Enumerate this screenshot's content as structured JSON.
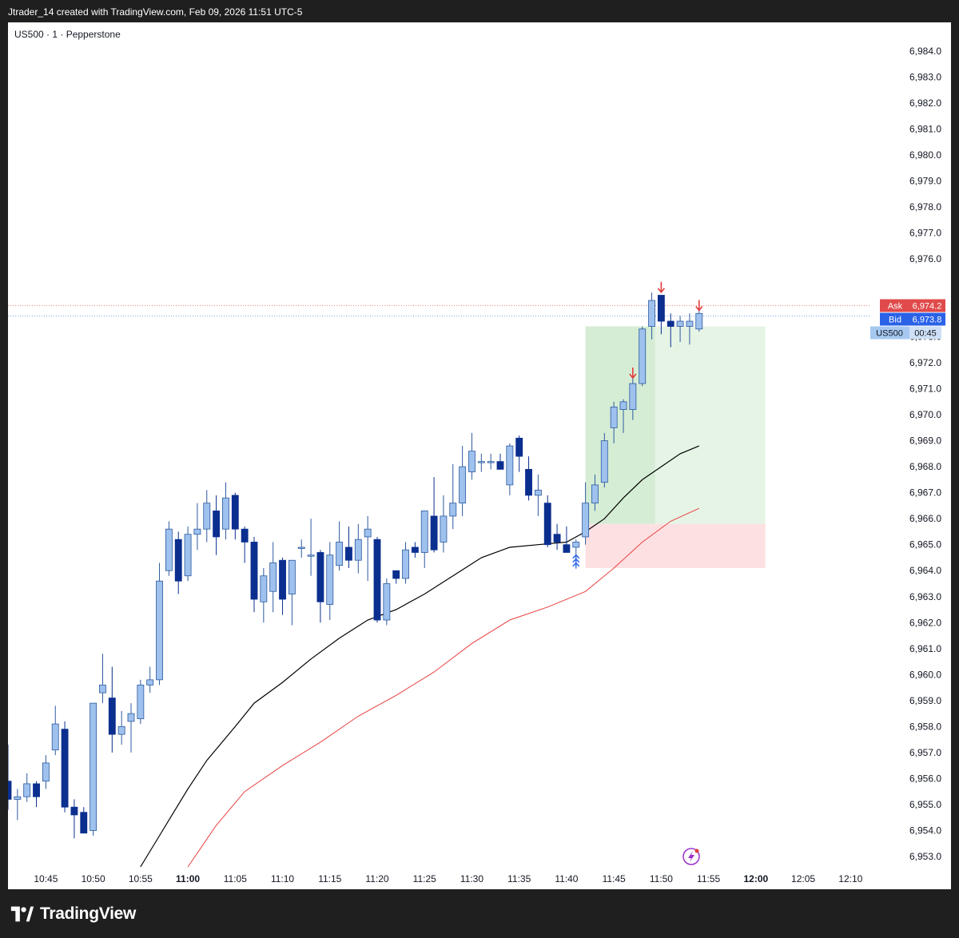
{
  "header": {
    "title": "Jtrader_14 created with TradingView.com, Feb 09, 2026 11:51 UTC-5"
  },
  "legend": {
    "symbol_line": "US500 · 1 · Pepperstone"
  },
  "footer": {
    "brand": "TradingView",
    "logo_icon": "tradingview-logo-icon"
  },
  "colors": {
    "bull_fill": "#9ec1ee",
    "bull_border": "#2d5a9e",
    "bear_fill": "#0b2f8f",
    "ema_fast": "#000000",
    "ema_slow": "#e8403f",
    "target_zone": "#e6f4e6",
    "target_zone_dark": "#c9e8c9",
    "stop_zone": "#fde0e2",
    "ask_label": "#e04a4a",
    "bid_label": "#2a62e8",
    "symbol_label": "#a6c8f0",
    "arrow_marker": "#e03c3c"
  },
  "chart_data": {
    "type": "candlestick",
    "symbol": "US500",
    "interval": "1",
    "broker": "Pepperstone",
    "y_range": [
      6952.6,
      6985.1
    ],
    "x_range": [
      "10:41",
      "12:12"
    ],
    "x_ticks": [
      "10:45",
      "10:50",
      "10:55",
      "11:00",
      "11:05",
      "11:10",
      "11:15",
      "11:20",
      "11:25",
      "11:30",
      "11:35",
      "11:40",
      "11:45",
      "11:50",
      "11:55",
      "12:00",
      "12:05",
      "12:10"
    ],
    "x_ticks_bold": [
      "11:00",
      "12:00"
    ],
    "y_ticks": [
      "6,984.0",
      "6,983.0",
      "6,982.0",
      "6,981.0",
      "6,980.0",
      "6,979.0",
      "6,978.0",
      "6,977.0",
      "6,976.0",
      "6,973.0",
      "6,972.0",
      "6,971.0",
      "6,970.0",
      "6,969.0",
      "6,968.0",
      "6,967.0",
      "6,966.0",
      "6,965.0",
      "6,964.0",
      "6,963.0",
      "6,962.0",
      "6,961.0",
      "6,960.0",
      "6,959.0",
      "6,958.0",
      "6,957.0",
      "6,956.0",
      "6,955.0",
      "6,954.0",
      "6,953.0"
    ],
    "candles": [
      {
        "t": "10:41",
        "o": 6955.9,
        "h": 6957.3,
        "l": 6954.8,
        "c": 6955.2
      },
      {
        "t": "10:42",
        "o": 6955.2,
        "h": 6955.6,
        "l": 6954.4,
        "c": 6955.3
      },
      {
        "t": "10:43",
        "o": 6955.3,
        "h": 6956.2,
        "l": 6955.1,
        "c": 6955.8
      },
      {
        "t": "10:44",
        "o": 6955.8,
        "h": 6955.9,
        "l": 6954.9,
        "c": 6955.3
      },
      {
        "t": "10:45",
        "o": 6955.9,
        "h": 6956.9,
        "l": 6955.6,
        "c": 6956.6
      },
      {
        "t": "10:46",
        "o": 6957.1,
        "h": 6958.8,
        "l": 6956.9,
        "c": 6958.1
      },
      {
        "t": "10:47",
        "o": 6957.9,
        "h": 6958.2,
        "l": 6954.7,
        "c": 6954.9
      },
      {
        "t": "10:48",
        "o": 6954.9,
        "h": 6955.2,
        "l": 6953.7,
        "c": 6954.6
      },
      {
        "t": "10:49",
        "o": 6954.7,
        "h": 6954.9,
        "l": 6953.9,
        "c": 6953.9
      },
      {
        "t": "10:50",
        "o": 6954.0,
        "h": 6958.9,
        "l": 6953.8,
        "c": 6958.9
      },
      {
        "t": "10:51",
        "o": 6959.3,
        "h": 6960.8,
        "l": 6958.9,
        "c": 6959.6
      },
      {
        "t": "10:52",
        "o": 6959.1,
        "h": 6960.3,
        "l": 6957.0,
        "c": 6957.7
      },
      {
        "t": "10:53",
        "o": 6957.7,
        "h": 6958.6,
        "l": 6957.3,
        "c": 6958.0
      },
      {
        "t": "10:54",
        "o": 6958.2,
        "h": 6958.9,
        "l": 6957.0,
        "c": 6958.5
      },
      {
        "t": "10:55",
        "o": 6958.3,
        "h": 6959.8,
        "l": 6958.1,
        "c": 6959.6
      },
      {
        "t": "10:56",
        "o": 6959.6,
        "h": 6960.3,
        "l": 6959.3,
        "c": 6959.8
      },
      {
        "t": "10:57",
        "o": 6959.8,
        "h": 6964.3,
        "l": 6959.6,
        "c": 6963.6
      },
      {
        "t": "10:58",
        "o": 6964.0,
        "h": 6965.9,
        "l": 6963.8,
        "c": 6965.6
      },
      {
        "t": "10:59",
        "o": 6965.2,
        "h": 6965.5,
        "l": 6963.1,
        "c": 6963.6
      },
      {
        "t": "11:00",
        "o": 6963.8,
        "h": 6965.7,
        "l": 6963.6,
        "c": 6965.4
      },
      {
        "t": "11:01",
        "o": 6965.4,
        "h": 6966.6,
        "l": 6964.8,
        "c": 6965.6
      },
      {
        "t": "11:02",
        "o": 6965.6,
        "h": 6967.1,
        "l": 6965.1,
        "c": 6966.6
      },
      {
        "t": "11:03",
        "o": 6966.3,
        "h": 6966.9,
        "l": 6964.6,
        "c": 6965.3
      },
      {
        "t": "11:04",
        "o": 6965.6,
        "h": 6967.4,
        "l": 6965.2,
        "c": 6966.8
      },
      {
        "t": "11:05",
        "o": 6966.9,
        "h": 6967.0,
        "l": 6965.2,
        "c": 6965.6
      },
      {
        "t": "11:06",
        "o": 6965.6,
        "h": 6965.7,
        "l": 6964.3,
        "c": 6965.1
      },
      {
        "t": "11:07",
        "o": 6965.1,
        "h": 6965.3,
        "l": 6962.4,
        "c": 6962.9
      },
      {
        "t": "11:08",
        "o": 6962.8,
        "h": 6964.1,
        "l": 6962.0,
        "c": 6963.8
      },
      {
        "t": "11:09",
        "o": 6963.2,
        "h": 6965.1,
        "l": 6962.4,
        "c": 6964.3
      },
      {
        "t": "11:10",
        "o": 6964.4,
        "h": 6964.5,
        "l": 6962.3,
        "c": 6962.9
      },
      {
        "t": "11:11",
        "o": 6963.1,
        "h": 6964.4,
        "l": 6961.9,
        "c": 6964.4
      },
      {
        "t": "11:12",
        "o": 6964.9,
        "h": 6965.2,
        "l": 6964.5,
        "c": 6964.9
      },
      {
        "t": "11:13",
        "o": 6964.6,
        "h": 6966.0,
        "l": 6963.8,
        "c": 6964.6
      },
      {
        "t": "11:14",
        "o": 6964.7,
        "h": 6964.8,
        "l": 6962.0,
        "c": 6962.8
      },
      {
        "t": "11:15",
        "o": 6962.7,
        "h": 6965.1,
        "l": 6962.1,
        "c": 6964.6
      },
      {
        "t": "11:16",
        "o": 6964.2,
        "h": 6965.9,
        "l": 6964.0,
        "c": 6965.1
      },
      {
        "t": "11:17",
        "o": 6964.9,
        "h": 6965.7,
        "l": 6964.1,
        "c": 6964.4
      },
      {
        "t": "11:18",
        "o": 6964.4,
        "h": 6965.8,
        "l": 6963.9,
        "c": 6965.2
      },
      {
        "t": "11:19",
        "o": 6965.3,
        "h": 6966.1,
        "l": 6963.6,
        "c": 6965.6
      },
      {
        "t": "11:20",
        "o": 6965.2,
        "h": 6965.3,
        "l": 6962.0,
        "c": 6962.1
      },
      {
        "t": "11:21",
        "o": 6962.1,
        "h": 6963.7,
        "l": 6961.9,
        "c": 6963.5
      },
      {
        "t": "11:22",
        "o": 6964.0,
        "h": 6964.0,
        "l": 6963.5,
        "c": 6963.7
      },
      {
        "t": "11:23",
        "o": 6963.7,
        "h": 6965.1,
        "l": 6963.5,
        "c": 6964.8
      },
      {
        "t": "11:24",
        "o": 6964.9,
        "h": 6965.1,
        "l": 6964.5,
        "c": 6964.7
      },
      {
        "t": "11:25",
        "o": 6964.7,
        "h": 6966.3,
        "l": 6964.1,
        "c": 6966.3
      },
      {
        "t": "11:26",
        "o": 6966.1,
        "h": 6967.6,
        "l": 6964.7,
        "c": 6964.8
      },
      {
        "t": "11:27",
        "o": 6965.1,
        "h": 6966.9,
        "l": 6964.7,
        "c": 6966.1
      },
      {
        "t": "11:28",
        "o": 6966.1,
        "h": 6968.1,
        "l": 6965.6,
        "c": 6966.6
      },
      {
        "t": "11:29",
        "o": 6966.6,
        "h": 6968.8,
        "l": 6966.1,
        "c": 6968.0
      },
      {
        "t": "11:30",
        "o": 6967.8,
        "h": 6969.3,
        "l": 6967.5,
        "c": 6968.6
      },
      {
        "t": "11:31",
        "o": 6968.2,
        "h": 6968.5,
        "l": 6967.8,
        "c": 6968.2
      },
      {
        "t": "11:32",
        "o": 6968.2,
        "h": 6968.5,
        "l": 6967.9,
        "c": 6968.2
      },
      {
        "t": "11:33",
        "o": 6968.2,
        "h": 6968.5,
        "l": 6967.9,
        "c": 6967.9
      },
      {
        "t": "11:34",
        "o": 6967.3,
        "h": 6968.9,
        "l": 6966.9,
        "c": 6968.8
      },
      {
        "t": "11:35",
        "o": 6969.1,
        "h": 6969.2,
        "l": 6967.8,
        "c": 6968.4
      },
      {
        "t": "11:36",
        "o": 6967.9,
        "h": 6968.4,
        "l": 6966.7,
        "c": 6966.9
      },
      {
        "t": "11:37",
        "o": 6966.9,
        "h": 6967.7,
        "l": 6966.1,
        "c": 6967.1
      },
      {
        "t": "11:38",
        "o": 6966.6,
        "h": 6966.9,
        "l": 6964.9,
        "c": 6965.0
      },
      {
        "t": "11:39",
        "o": 6965.4,
        "h": 6965.8,
        "l": 6964.8,
        "c": 6965.1
      },
      {
        "t": "11:40",
        "o": 6965.0,
        "h": 6965.7,
        "l": 6964.8,
        "c": 6964.7
      },
      {
        "t": "11:41",
        "o": 6964.9,
        "h": 6965.2,
        "l": 6964.1,
        "c": 6965.1
      },
      {
        "t": "11:42",
        "o": 6965.3,
        "h": 6967.4,
        "l": 6965.0,
        "c": 6966.6
      },
      {
        "t": "11:43",
        "o": 6966.6,
        "h": 6967.7,
        "l": 6966.3,
        "c": 6967.3
      },
      {
        "t": "11:44",
        "o": 6967.4,
        "h": 6969.3,
        "l": 6967.2,
        "c": 6969.0
      },
      {
        "t": "11:45",
        "o": 6969.5,
        "h": 6970.5,
        "l": 6968.9,
        "c": 6970.3
      },
      {
        "t": "11:46",
        "o": 6970.2,
        "h": 6970.6,
        "l": 6969.3,
        "c": 6970.5
      },
      {
        "t": "11:47",
        "o": 6970.2,
        "h": 6971.4,
        "l": 6969.8,
        "c": 6971.2
      },
      {
        "t": "11:48",
        "o": 6971.2,
        "h": 6973.4,
        "l": 6971.1,
        "c": 6973.3
      },
      {
        "t": "11:49",
        "o": 6973.4,
        "h": 6974.7,
        "l": 6972.9,
        "c": 6974.4
      },
      {
        "t": "11:50",
        "o": 6974.6,
        "h": 6974.3,
        "l": 6973.1,
        "c": 6973.6
      },
      {
        "t": "11:51",
        "o": 6973.6,
        "h": 6973.9,
        "l": 6972.6,
        "c": 6973.4
      },
      {
        "t": "11:52",
        "o": 6973.4,
        "h": 6973.8,
        "l": 6972.8,
        "c": 6973.6
      },
      {
        "t": "11:53",
        "o": 6973.4,
        "h": 6973.9,
        "l": 6972.7,
        "c": 6973.6
      },
      {
        "t": "11:54",
        "o": 6973.3,
        "h": 6974.0,
        "l": 6973.2,
        "c": 6973.9
      }
    ],
    "ema_fast": [
      {
        "t": "10:55",
        "v": 6952.6
      },
      {
        "t": "10:57",
        "v": 6953.8
      },
      {
        "t": "11:00",
        "v": 6955.6
      },
      {
        "t": "11:02",
        "v": 6956.7
      },
      {
        "t": "11:05",
        "v": 6958.0
      },
      {
        "t": "11:07",
        "v": 6958.9
      },
      {
        "t": "11:10",
        "v": 6959.7
      },
      {
        "t": "11:13",
        "v": 6960.6
      },
      {
        "t": "11:16",
        "v": 6961.4
      },
      {
        "t": "11:19",
        "v": 6962.1
      },
      {
        "t": "11:22",
        "v": 6962.5
      },
      {
        "t": "11:25",
        "v": 6963.1
      },
      {
        "t": "11:28",
        "v": 6963.8
      },
      {
        "t": "11:31",
        "v": 6964.5
      },
      {
        "t": "11:34",
        "v": 6964.9
      },
      {
        "t": "11:37",
        "v": 6965.0
      },
      {
        "t": "11:40",
        "v": 6965.1
      },
      {
        "t": "11:42",
        "v": 6965.5
      },
      {
        "t": "11:44",
        "v": 6966.0
      },
      {
        "t": "11:46",
        "v": 6966.8
      },
      {
        "t": "11:48",
        "v": 6967.5
      },
      {
        "t": "11:50",
        "v": 6968.0
      },
      {
        "t": "11:52",
        "v": 6968.5
      },
      {
        "t": "11:54",
        "v": 6968.8
      }
    ],
    "ema_slow": [
      {
        "t": "11:00",
        "v": 6952.6
      },
      {
        "t": "11:03",
        "v": 6954.2
      },
      {
        "t": "11:06",
        "v": 6955.5
      },
      {
        "t": "11:10",
        "v": 6956.5
      },
      {
        "t": "11:14",
        "v": 6957.4
      },
      {
        "t": "11:18",
        "v": 6958.4
      },
      {
        "t": "11:22",
        "v": 6959.2
      },
      {
        "t": "11:26",
        "v": 6960.1
      },
      {
        "t": "11:30",
        "v": 6961.2
      },
      {
        "t": "11:34",
        "v": 6962.1
      },
      {
        "t": "11:38",
        "v": 6962.6
      },
      {
        "t": "11:42",
        "v": 6963.2
      },
      {
        "t": "11:45",
        "v": 6964.1
      },
      {
        "t": "11:48",
        "v": 6965.1
      },
      {
        "t": "11:51",
        "v": 6965.9
      },
      {
        "t": "11:54",
        "v": 6966.4
      }
    ],
    "position": {
      "start": "11:42",
      "end": "12:01",
      "entry": 6965.8,
      "target": 6973.4,
      "stop": 6964.1,
      "filled_until": "11:49"
    },
    "sell_markers": [
      {
        "t": "11:47",
        "price": 6971.6
      },
      {
        "t": "11:50",
        "price": 6974.9
      },
      {
        "t": "11:54",
        "price": 6974.2
      }
    ],
    "buy_markers": [
      {
        "t": "11:41",
        "price": 6964.6
      }
    ],
    "price_labels": {
      "ask": {
        "label": "Ask",
        "value": "6,974.2",
        "price": 6974.2
      },
      "bid": {
        "label": "Bid",
        "value": "6,973.8",
        "price": 6973.8
      },
      "symbol": {
        "label": "US500",
        "value": "00:45",
        "price": 6973.7
      }
    },
    "grid": false,
    "legend": "top-left"
  }
}
